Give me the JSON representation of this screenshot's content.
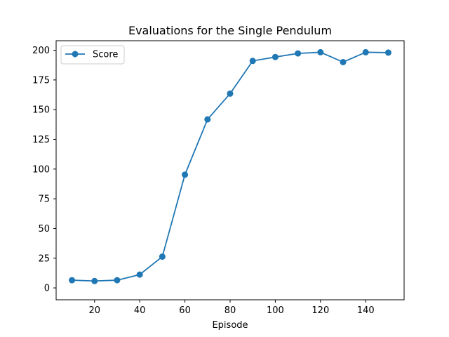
{
  "chart_data": {
    "type": "line",
    "title": "Evaluations for the Single Pendulum",
    "xlabel": "Episode",
    "ylabel": "",
    "xlim": [
      3,
      157
    ],
    "ylim": [
      -10,
      208
    ],
    "xticks": [
      20,
      40,
      60,
      80,
      100,
      120,
      140
    ],
    "yticks": [
      0,
      25,
      50,
      75,
      100,
      125,
      150,
      175,
      200
    ],
    "grid": false,
    "legend_position": "top-left",
    "series": [
      {
        "name": "Score",
        "color": "#1f77b4",
        "marker": "circle",
        "x": [
          10,
          20,
          30,
          40,
          50,
          60,
          70,
          80,
          90,
          100,
          110,
          120,
          130,
          140,
          150
        ],
        "y": [
          6.5,
          5.8,
          6.5,
          11.2,
          26.3,
          95.3,
          141.8,
          163.5,
          191.0,
          194.3,
          197.3,
          198.3,
          190.0,
          198.3,
          198.0
        ]
      }
    ]
  }
}
